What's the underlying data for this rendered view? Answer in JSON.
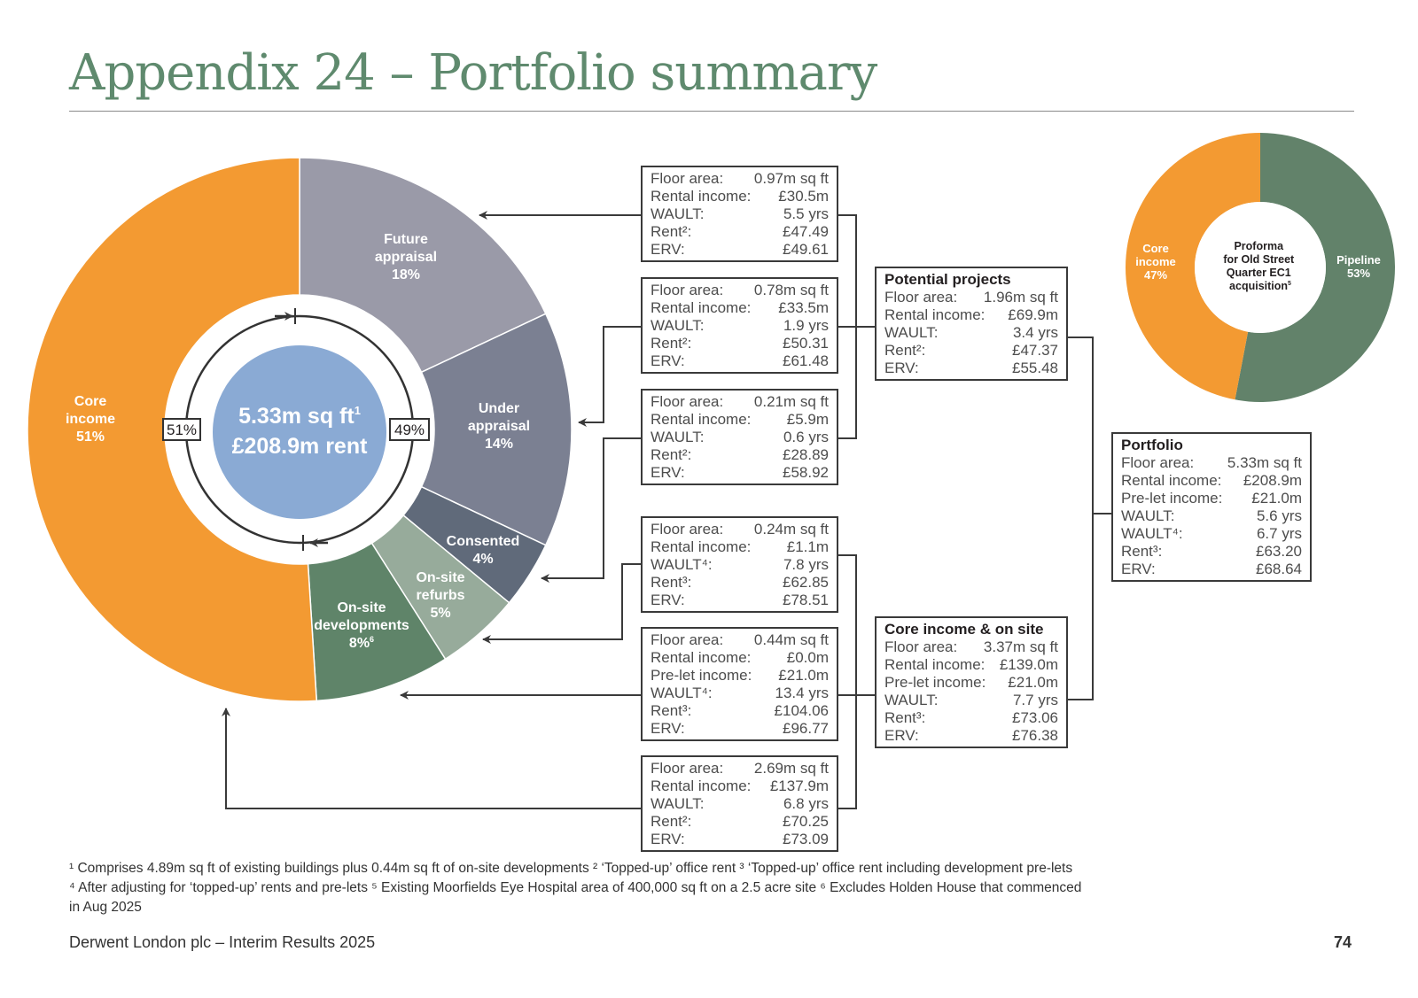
{
  "title": "Appendix 24 – Portfolio summary",
  "chart_data": [
    {
      "type": "pie",
      "subtype": "donut",
      "slices": [
        {
          "label": "Core income",
          "value": 51,
          "display": "51%",
          "color": "#f39a32"
        },
        {
          "label": "Future appraisal",
          "value": 18,
          "display": "18%",
          "color": "#9a9aa8"
        },
        {
          "label": "Under appraisal",
          "value": 14,
          "display": "14%",
          "color": "#7b8092"
        },
        {
          "label": "Consented",
          "value": 4,
          "display": "4%",
          "color": "#606a7a"
        },
        {
          "label": "On-site refurbs",
          "value": 5,
          "display": "5%",
          "color": "#97ab9b"
        },
        {
          "label": "On-site developments",
          "value": 8,
          "display": "8%",
          "sup": "6",
          "color": "#5f8469"
        }
      ],
      "center_line1": "5.33m sq ft",
      "center_sup": "1",
      "center_line2": "£208.9m rent",
      "left_pct": "51%",
      "right_pct": "49%"
    },
    {
      "type": "pie",
      "subtype": "donut",
      "slices": [
        {
          "label": "Core income",
          "value": 47,
          "display": "47%",
          "color": "#f39a32"
        },
        {
          "label": "Pipeline",
          "value": 53,
          "display": "53%",
          "color": "#62826a"
        }
      ],
      "center_lines": [
        "Proforma",
        "for Old Street",
        "Quarter EC1",
        "acquisition"
      ],
      "center_sup": "5"
    }
  ],
  "boxes": {
    "future": [
      [
        "Floor area:",
        "0.97m sq ft"
      ],
      [
        "Rental income:",
        "£30.5m"
      ],
      [
        "WAULT:",
        "5.5 yrs"
      ],
      [
        "Rent²:",
        "£47.49"
      ],
      [
        "ERV:",
        "£49.61"
      ]
    ],
    "under": [
      [
        "Floor area:",
        "0.78m sq ft"
      ],
      [
        "Rental income:",
        "£33.5m"
      ],
      [
        "WAULT:",
        "1.9 yrs"
      ],
      [
        "Rent²:",
        "£50.31"
      ],
      [
        "ERV:",
        "£61.48"
      ]
    ],
    "consented": [
      [
        "Floor area:",
        "0.21m sq ft"
      ],
      [
        "Rental income:",
        "£5.9m"
      ],
      [
        "WAULT:",
        "0.6 yrs"
      ],
      [
        "Rent²:",
        "£28.89"
      ],
      [
        "ERV:",
        "£58.92"
      ]
    ],
    "refurbs": [
      [
        "Floor area:",
        "0.24m sq ft"
      ],
      [
        "Rental income:",
        "£1.1m"
      ],
      [
        "WAULT⁴:",
        "7.8 yrs"
      ],
      [
        "Rent³:",
        "£62.85"
      ],
      [
        "ERV:",
        "£78.51"
      ]
    ],
    "developments": [
      [
        "Floor area:",
        "0.44m sq ft"
      ],
      [
        "Rental income:",
        "£0.0m"
      ],
      [
        "Pre-let income:",
        "£21.0m"
      ],
      [
        "WAULT⁴:",
        "13.4 yrs"
      ],
      [
        "Rent³:",
        "£104.06"
      ],
      [
        "ERV:",
        "£96.77"
      ]
    ],
    "core": [
      [
        "Floor area:",
        "2.69m sq ft"
      ],
      [
        "Rental income:",
        "£137.9m"
      ],
      [
        "WAULT:",
        "6.8 yrs"
      ],
      [
        "Rent²:",
        "£70.25"
      ],
      [
        "ERV:",
        "£73.09"
      ]
    ],
    "potential": {
      "heading": "Potential projects",
      "rows": [
        [
          "Floor area:",
          "1.96m sq ft"
        ],
        [
          "Rental income:",
          "£69.9m"
        ],
        [
          "WAULT:",
          "3.4 yrs"
        ],
        [
          "Rent²:",
          "£47.37"
        ],
        [
          "ERV:",
          "£55.48"
        ]
      ]
    },
    "core_onsite": {
      "heading": "Core income & on site",
      "rows": [
        [
          "Floor area:",
          "3.37m sq ft"
        ],
        [
          "Rental income:",
          "£139.0m"
        ],
        [
          "Pre-let income:",
          "£21.0m"
        ],
        [
          "WAULT:",
          "7.7 yrs"
        ],
        [
          "Rent³:",
          "£73.06"
        ],
        [
          "ERV:",
          "£76.38"
        ]
      ]
    },
    "portfolio": {
      "heading": "Portfolio",
      "rows": [
        [
          "Floor area:",
          "5.33m sq ft"
        ],
        [
          "Rental income:",
          "£208.9m"
        ],
        [
          "Pre-let income:",
          "£21.0m"
        ],
        [
          "WAULT:",
          "5.6 yrs"
        ],
        [
          "WAULT⁴:",
          "6.7 yrs"
        ],
        [
          "Rent³:",
          "£63.20"
        ],
        [
          "ERV:",
          "£68.64"
        ]
      ]
    }
  },
  "footnotes": {
    "line1": "¹ Comprises 4.89m sq ft of existing buildings plus 0.44m sq ft of on-site developments    ² ‘Topped-up’ office rent    ³ ‘Topped-up’ office rent including development pre-lets",
    "line2": "⁴ After adjusting for ‘topped-up’ rents and pre-lets    ⁵ Existing Moorfields Eye Hospital area of 400,000 sq ft on a 2.5 acre site    ⁶ Excludes Holden House that commenced",
    "line3": "in Aug 2025"
  },
  "footer": {
    "left": "Derwent London plc – Interim Results 2025",
    "page": "74"
  }
}
